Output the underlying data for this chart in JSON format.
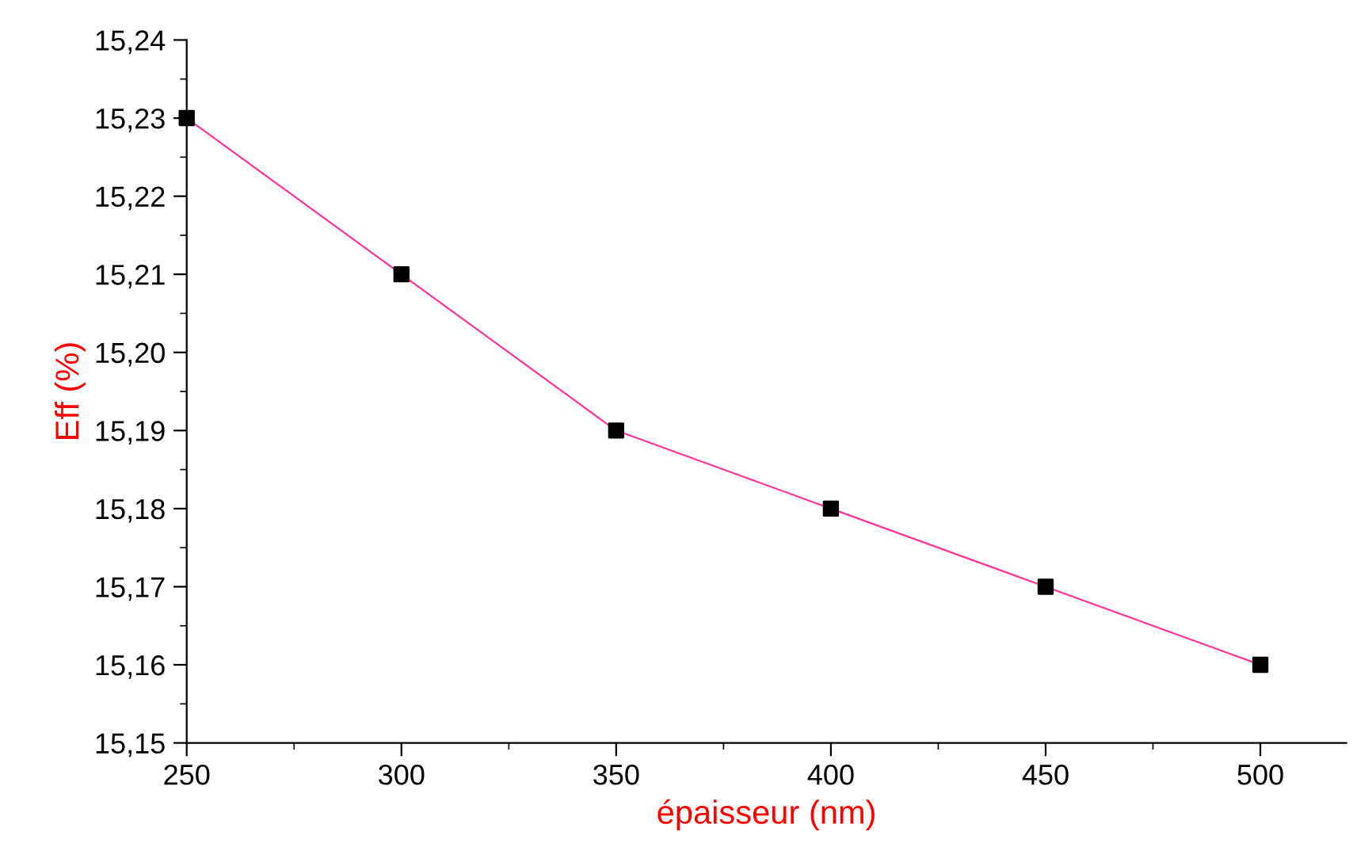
{
  "chart_data": {
    "type": "line",
    "xlabel": "épaisseur (nm)",
    "ylabel": "Eff (%)",
    "x": [
      250,
      300,
      350,
      400,
      450,
      500
    ],
    "series": [
      {
        "color": "#ff3399",
        "colors": [
          "#000000",
          "#000000",
          "#000000",
          "#000000",
          "#000000",
          "#000000"
        ],
        "values": [
          15.23,
          15.21,
          15.19,
          15.18,
          15.17,
          15.16
        ]
      }
    ],
    "marker": "square",
    "line_style": "solid",
    "grid": false,
    "legend": false,
    "xlim": [
      250,
      520
    ],
    "xticks": [
      250,
      300,
      350,
      400,
      450,
      500
    ],
    "ylim": [
      15.15,
      15.24
    ],
    "yticks": [
      {
        "value": 15.15,
        "label": "15,15"
      },
      {
        "value": 15.16,
        "label": "15,16"
      },
      {
        "value": 15.17,
        "label": "15,17"
      },
      {
        "value": 15.18,
        "label": "15,18"
      },
      {
        "value": 15.19,
        "label": "15,19"
      },
      {
        "value": 15.2,
        "label": "15,20"
      },
      {
        "value": 15.21,
        "label": "15,21"
      },
      {
        "value": 15.22,
        "label": "15,22"
      },
      {
        "value": 15.23,
        "label": "15,23"
      },
      {
        "value": 15.24,
        "label": "15,24"
      }
    ]
  }
}
